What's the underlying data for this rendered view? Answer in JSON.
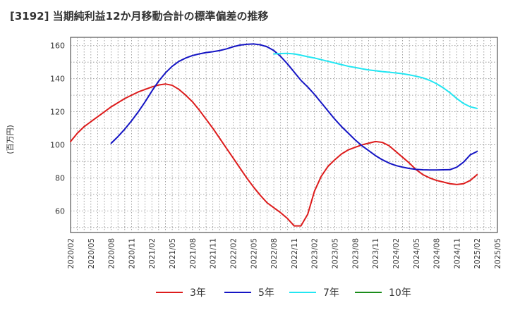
{
  "title": "[3192]  当期純利益12か月移動合計の標準偏差の推移",
  "chart_data": {
    "type": "line",
    "ylabel": "(百万円)",
    "xlabel": "",
    "ylim": [
      47,
      165
    ],
    "yticks": [
      60,
      80,
      100,
      120,
      140,
      160
    ],
    "xlim": [
      "2020-02",
      "2025-05"
    ],
    "xticks": [
      "2020/02",
      "2020/05",
      "2020/08",
      "2020/11",
      "2021/02",
      "2021/05",
      "2021/08",
      "2021/11",
      "2022/02",
      "2022/05",
      "2022/08",
      "2022/11",
      "2023/02",
      "2023/05",
      "2023/08",
      "2023/11",
      "2024/02",
      "2024/05",
      "2024/08",
      "2024/11",
      "2025/02",
      "2025/05"
    ],
    "grid": true,
    "legend_position": "bottom",
    "series": [
      {
        "name": "3年",
        "color": "#dd1c1c",
        "points": [
          [
            "2020-02",
            102
          ],
          [
            "2020-03",
            107
          ],
          [
            "2020-04",
            111
          ],
          [
            "2020-05",
            114
          ],
          [
            "2020-06",
            117
          ],
          [
            "2020-07",
            120
          ],
          [
            "2020-08",
            123
          ],
          [
            "2020-09",
            125.5
          ],
          [
            "2020-10",
            128
          ],
          [
            "2020-11",
            130
          ],
          [
            "2020-12",
            132
          ],
          [
            "2021-01",
            133.5
          ],
          [
            "2021-02",
            135
          ],
          [
            "2021-03",
            136.2
          ],
          [
            "2021-04",
            136.8
          ],
          [
            "2021-05",
            136
          ],
          [
            "2021-06",
            133.5
          ],
          [
            "2021-07",
            130
          ],
          [
            "2021-08",
            126
          ],
          [
            "2021-09",
            121
          ],
          [
            "2021-10",
            115.5
          ],
          [
            "2021-11",
            110
          ],
          [
            "2021-12",
            104
          ],
          [
            "2022-01",
            98
          ],
          [
            "2022-02",
            92
          ],
          [
            "2022-03",
            86
          ],
          [
            "2022-04",
            80
          ],
          [
            "2022-05",
            74.5
          ],
          [
            "2022-06",
            69.5
          ],
          [
            "2022-07",
            65
          ],
          [
            "2022-08",
            62
          ],
          [
            "2022-09",
            59
          ],
          [
            "2022-10",
            55.5
          ],
          [
            "2022-11",
            51
          ],
          [
            "2022-12",
            51
          ],
          [
            "2023-01",
            58
          ],
          [
            "2023-02",
            72
          ],
          [
            "2023-03",
            81
          ],
          [
            "2023-04",
            87
          ],
          [
            "2023-05",
            91
          ],
          [
            "2023-06",
            94.5
          ],
          [
            "2023-07",
            97
          ],
          [
            "2023-08",
            98.5
          ],
          [
            "2023-09",
            100
          ],
          [
            "2023-10",
            101
          ],
          [
            "2023-11",
            102
          ],
          [
            "2023-12",
            101.5
          ],
          [
            "2024-01",
            99.5
          ],
          [
            "2024-02",
            96
          ],
          [
            "2024-03",
            92.5
          ],
          [
            "2024-04",
            89
          ],
          [
            "2024-05",
            85
          ],
          [
            "2024-06",
            82
          ],
          [
            "2024-07",
            80
          ],
          [
            "2024-08",
            78.5
          ],
          [
            "2024-09",
            77.5
          ],
          [
            "2024-10",
            76.5
          ],
          [
            "2024-11",
            76
          ],
          [
            "2024-12",
            76.5
          ],
          [
            "2025-01",
            78.5
          ],
          [
            "2025-02",
            82
          ]
        ]
      },
      {
        "name": "5年",
        "color": "#1515c4",
        "points": [
          [
            "2020-08",
            101
          ],
          [
            "2020-09",
            105
          ],
          [
            "2020-10",
            109.5
          ],
          [
            "2020-11",
            114.5
          ],
          [
            "2020-12",
            120
          ],
          [
            "2021-01",
            126
          ],
          [
            "2021-02",
            132.5
          ],
          [
            "2021-03",
            138.5
          ],
          [
            "2021-04",
            143.5
          ],
          [
            "2021-05",
            147.5
          ],
          [
            "2021-06",
            150.5
          ],
          [
            "2021-07",
            152.5
          ],
          [
            "2021-08",
            154
          ],
          [
            "2021-09",
            155
          ],
          [
            "2021-10",
            155.8
          ],
          [
            "2021-11",
            156.3
          ],
          [
            "2021-12",
            157
          ],
          [
            "2022-01",
            158
          ],
          [
            "2022-02",
            159.3
          ],
          [
            "2022-03",
            160.3
          ],
          [
            "2022-04",
            160.8
          ],
          [
            "2022-05",
            161
          ],
          [
            "2022-06",
            160.5
          ],
          [
            "2022-07",
            159.3
          ],
          [
            "2022-08",
            157
          ],
          [
            "2022-09",
            153.5
          ],
          [
            "2022-10",
            149
          ],
          [
            "2022-11",
            144
          ],
          [
            "2022-12",
            139
          ],
          [
            "2023-01",
            135
          ],
          [
            "2023-02",
            130.5
          ],
          [
            "2023-03",
            125.5
          ],
          [
            "2023-04",
            120.5
          ],
          [
            "2023-05",
            115.5
          ],
          [
            "2023-06",
            111
          ],
          [
            "2023-07",
            107
          ],
          [
            "2023-08",
            103
          ],
          [
            "2023-09",
            99.5
          ],
          [
            "2023-10",
            96.5
          ],
          [
            "2023-11",
            93.5
          ],
          [
            "2023-12",
            91
          ],
          [
            "2024-01",
            89
          ],
          [
            "2024-02",
            87.5
          ],
          [
            "2024-03",
            86.5
          ],
          [
            "2024-04",
            85.7
          ],
          [
            "2024-05",
            85.2
          ],
          [
            "2024-06",
            84.9
          ],
          [
            "2024-07",
            84.8
          ],
          [
            "2024-08",
            84.8
          ],
          [
            "2024-09",
            84.9
          ],
          [
            "2024-10",
            85
          ],
          [
            "2024-11",
            86.5
          ],
          [
            "2024-12",
            89.5
          ],
          [
            "2025-01",
            94
          ],
          [
            "2025-02",
            96
          ]
        ]
      },
      {
        "name": "7年",
        "color": "#22e6f2",
        "points": [
          [
            "2022-08",
            155
          ],
          [
            "2022-09",
            155.2
          ],
          [
            "2022-10",
            155.3
          ],
          [
            "2022-11",
            155
          ],
          [
            "2022-12",
            154.2
          ],
          [
            "2023-01",
            153.3
          ],
          [
            "2023-02",
            152.5
          ],
          [
            "2023-03",
            151.5
          ],
          [
            "2023-04",
            150.5
          ],
          [
            "2023-05",
            149.5
          ],
          [
            "2023-06",
            148.5
          ],
          [
            "2023-07",
            147.5
          ],
          [
            "2023-08",
            146.8
          ],
          [
            "2023-09",
            146
          ],
          [
            "2023-10",
            145.3
          ],
          [
            "2023-11",
            144.8
          ],
          [
            "2023-12",
            144.3
          ],
          [
            "2024-01",
            143.9
          ],
          [
            "2024-02",
            143.5
          ],
          [
            "2024-03",
            143
          ],
          [
            "2024-04",
            142.3
          ],
          [
            "2024-05",
            141.5
          ],
          [
            "2024-06",
            140.5
          ],
          [
            "2024-07",
            139
          ],
          [
            "2024-08",
            137
          ],
          [
            "2024-09",
            134.5
          ],
          [
            "2024-10",
            131.5
          ],
          [
            "2024-11",
            128
          ],
          [
            "2024-12",
            125
          ],
          [
            "2025-01",
            123
          ],
          [
            "2025-02",
            122
          ]
        ]
      },
      {
        "name": "10年",
        "color": "#1a8c1a",
        "points": []
      }
    ]
  }
}
